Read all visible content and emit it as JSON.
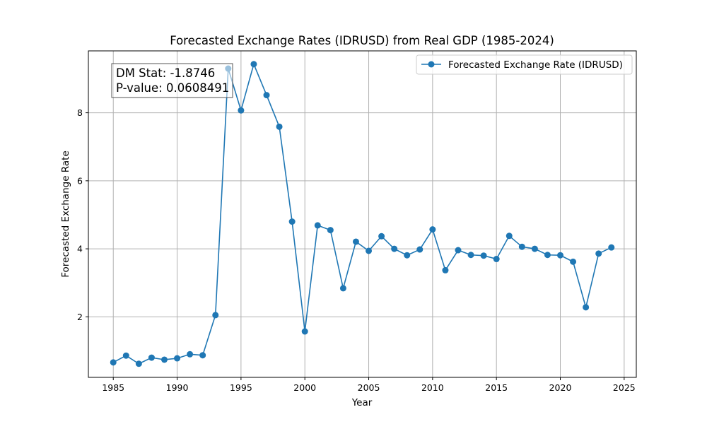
{
  "chart_data": {
    "type": "line",
    "title": "Forecasted Exchange Rates (IDRUSD) from Real GDP (1985-2024)",
    "xlabel": "Year",
    "ylabel": "Forecasted Exchange Rate",
    "xlim": [
      1983.05,
      2025.95
    ],
    "ylim": [
      0.22,
      9.82
    ],
    "xticks": [
      1985,
      1990,
      1995,
      2000,
      2005,
      2010,
      2015,
      2020,
      2025
    ],
    "yticks": [
      2,
      4,
      6,
      8
    ],
    "grid": true,
    "legend_position": "top-right",
    "series": [
      {
        "name": "Forecasted Exchange Rate (IDRUSD)",
        "color": "#1f77b4",
        "marker": "circle",
        "x": [
          1985,
          1986,
          1987,
          1988,
          1989,
          1990,
          1991,
          1992,
          1993,
          1994,
          1995,
          1996,
          1997,
          1998,
          1999,
          2000,
          2001,
          2002,
          2003,
          2004,
          2005,
          2006,
          2007,
          2008,
          2009,
          2010,
          2011,
          2012,
          2013,
          2014,
          2015,
          2016,
          2017,
          2018,
          2019,
          2020,
          2021,
          2022,
          2023,
          2024
        ],
        "y": [
          0.66,
          0.86,
          0.62,
          0.8,
          0.74,
          0.78,
          0.9,
          0.87,
          2.05,
          9.3,
          8.07,
          9.43,
          8.52,
          7.59,
          4.8,
          1.57,
          4.69,
          4.55,
          2.84,
          4.21,
          3.94,
          4.37,
          4.0,
          3.81,
          3.98,
          4.57,
          3.37,
          3.96,
          3.82,
          3.8,
          3.7,
          4.38,
          4.06,
          4.0,
          3.82,
          3.81,
          3.62,
          2.28,
          3.86,
          4.04
        ]
      }
    ],
    "annotation": {
      "lines": [
        "DM Stat: -1.8746",
        "P-value: 0.0608491"
      ],
      "position": "top-left"
    }
  }
}
